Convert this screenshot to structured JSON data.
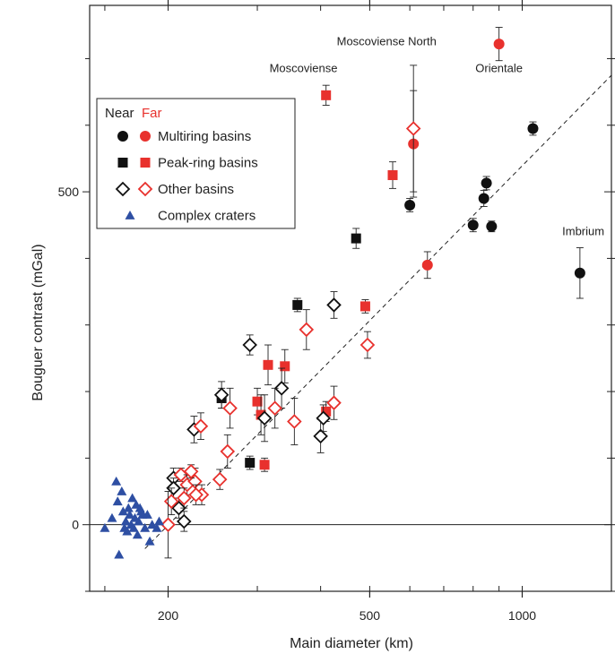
{
  "chart_data": {
    "type": "scatter",
    "xlabel": "Main diameter (km)",
    "ylabel": "Bouguer contrast (mGal)",
    "xscale": "log",
    "xlim": [
      140,
      1500
    ],
    "ylim": [
      -100,
      780
    ],
    "xticks": [
      {
        "value": 200,
        "label": "200"
      },
      {
        "value": 500,
        "label": "500"
      },
      {
        "value": 1000,
        "label": "1000"
      }
    ],
    "yticks": [
      {
        "value": 0,
        "label": "0"
      },
      {
        "value": 500,
        "label": "500"
      }
    ],
    "grid": false,
    "legend": {
      "position": "top-left",
      "header_near": "Near",
      "header_far": "Far",
      "entries": [
        {
          "label": "Multiring basins",
          "marker": "circle"
        },
        {
          "label": "Peak-ring basins",
          "marker": "square"
        },
        {
          "label": "Other basins",
          "marker": "diamond"
        },
        {
          "label": "Complex craters",
          "marker": "triangle"
        }
      ]
    },
    "colors": {
      "near": "#111111",
      "far": "#e8312d",
      "crater": "#2e4fa3"
    },
    "fit_line": {
      "style": "dashed",
      "x": [
        180,
        1500
      ],
      "y": [
        -36,
        675
      ]
    },
    "annotations": [
      {
        "text": "Moscoviense",
        "x": 370,
        "y": 680
      },
      {
        "text": "Moscoviense North",
        "x": 540,
        "y": 720
      },
      {
        "text": "Orientale",
        "x": 900,
        "y": 680
      },
      {
        "text": "Imbrium",
        "x": 1320,
        "y": 435
      }
    ],
    "series": [
      {
        "class": "multiring",
        "group": "near",
        "marker": "circle",
        "points": [
          {
            "x": 1050,
            "y": 595,
            "err": 10
          },
          {
            "x": 600,
            "y": 480,
            "err": 10
          },
          {
            "x": 850,
            "y": 513,
            "err": 10
          },
          {
            "x": 840,
            "y": 490,
            "err": 12
          },
          {
            "x": 800,
            "y": 450,
            "err": 10
          },
          {
            "x": 870,
            "y": 448,
            "err": 8
          },
          {
            "x": 1300,
            "y": 378,
            "err": 38
          }
        ]
      },
      {
        "class": "multiring",
        "group": "far",
        "marker": "circle",
        "points": [
          {
            "x": 900,
            "y": 722,
            "err": 25
          },
          {
            "x": 610,
            "y": 572,
            "err": 80
          },
          {
            "x": 650,
            "y": 390,
            "err": 20
          }
        ]
      },
      {
        "class": "peak-ring",
        "group": "near",
        "marker": "square",
        "points": [
          {
            "x": 470,
            "y": 430,
            "err": 15
          },
          {
            "x": 360,
            "y": 330,
            "err": 10
          },
          {
            "x": 255,
            "y": 190,
            "err": 15
          },
          {
            "x": 290,
            "y": 93,
            "err": 10
          }
        ]
      },
      {
        "class": "peak-ring",
        "group": "far",
        "marker": "square",
        "points": [
          {
            "x": 410,
            "y": 645,
            "err": 15
          },
          {
            "x": 555,
            "y": 525,
            "err": 20
          },
          {
            "x": 490,
            "y": 328,
            "err": 10
          },
          {
            "x": 315,
            "y": 240,
            "err": 30
          },
          {
            "x": 340,
            "y": 238,
            "err": 25
          },
          {
            "x": 300,
            "y": 185,
            "err": 20
          },
          {
            "x": 305,
            "y": 165,
            "err": 30
          },
          {
            "x": 310,
            "y": 90,
            "err": 10
          },
          {
            "x": 410,
            "y": 170,
            "err": 15
          }
        ]
      },
      {
        "class": "other",
        "group": "near",
        "marker": "diamond",
        "points": [
          {
            "x": 425,
            "y": 330,
            "err": 20
          },
          {
            "x": 290,
            "y": 270,
            "err": 15
          },
          {
            "x": 335,
            "y": 205,
            "err": 30
          },
          {
            "x": 255,
            "y": 195,
            "err": 20
          },
          {
            "x": 225,
            "y": 143,
            "err": 20
          },
          {
            "x": 310,
            "y": 160,
            "err": 35
          },
          {
            "x": 400,
            "y": 133,
            "err": 25
          },
          {
            "x": 405,
            "y": 160,
            "err": 20
          },
          {
            "x": 205,
            "y": 70,
            "err": 15
          },
          {
            "x": 205,
            "y": 55,
            "err": 15
          },
          {
            "x": 210,
            "y": 25,
            "err": 15
          },
          {
            "x": 215,
            "y": 5,
            "err": 15
          }
        ]
      },
      {
        "class": "other",
        "group": "far",
        "marker": "diamond",
        "points": [
          {
            "x": 610,
            "y": 595,
            "err": 95
          },
          {
            "x": 375,
            "y": 293,
            "err": 30
          },
          {
            "x": 495,
            "y": 270,
            "err": 20
          },
          {
            "x": 265,
            "y": 175,
            "err": 30
          },
          {
            "x": 325,
            "y": 175,
            "err": 30
          },
          {
            "x": 355,
            "y": 155,
            "err": 35
          },
          {
            "x": 425,
            "y": 183,
            "err": 25
          },
          {
            "x": 232,
            "y": 148,
            "err": 20
          },
          {
            "x": 262,
            "y": 110,
            "err": 25
          },
          {
            "x": 253,
            "y": 68,
            "err": 15
          },
          {
            "x": 212,
            "y": 75,
            "err": 10
          },
          {
            "x": 218,
            "y": 60,
            "err": 15
          },
          {
            "x": 226,
            "y": 65,
            "err": 20
          },
          {
            "x": 233,
            "y": 45,
            "err": 15
          },
          {
            "x": 215,
            "y": 40,
            "err": 15
          },
          {
            "x": 227,
            "y": 45,
            "err": 15
          },
          {
            "x": 222,
            "y": 80,
            "err": 10
          },
          {
            "x": 203,
            "y": 35,
            "err": 20
          },
          {
            "x": 200,
            "y": 0,
            "err": 50
          }
        ]
      },
      {
        "class": "complex-crater",
        "group": "near",
        "marker": "triangle",
        "points": [
          {
            "x": 150,
            "y": -5
          },
          {
            "x": 155,
            "y": 10
          },
          {
            "x": 158,
            "y": 65
          },
          {
            "x": 159,
            "y": 35
          },
          {
            "x": 160,
            "y": -45
          },
          {
            "x": 162,
            "y": 50
          },
          {
            "x": 163,
            "y": 20
          },
          {
            "x": 164,
            "y": -5
          },
          {
            "x": 165,
            "y": 5
          },
          {
            "x": 166,
            "y": -10
          },
          {
            "x": 167,
            "y": 25
          },
          {
            "x": 168,
            "y": 15
          },
          {
            "x": 169,
            "y": 0
          },
          {
            "x": 170,
            "y": 40
          },
          {
            "x": 171,
            "y": -5
          },
          {
            "x": 172,
            "y": 10
          },
          {
            "x": 173,
            "y": 30
          },
          {
            "x": 174,
            "y": -15
          },
          {
            "x": 175,
            "y": 5
          },
          {
            "x": 176,
            "y": 25
          },
          {
            "x": 177,
            "y": 20
          },
          {
            "x": 178,
            "y": 15
          },
          {
            "x": 180,
            "y": -5
          },
          {
            "x": 182,
            "y": 15
          },
          {
            "x": 184,
            "y": -25
          },
          {
            "x": 186,
            "y": 0
          },
          {
            "x": 190,
            "y": -5
          },
          {
            "x": 192,
            "y": 5
          }
        ]
      }
    ]
  }
}
